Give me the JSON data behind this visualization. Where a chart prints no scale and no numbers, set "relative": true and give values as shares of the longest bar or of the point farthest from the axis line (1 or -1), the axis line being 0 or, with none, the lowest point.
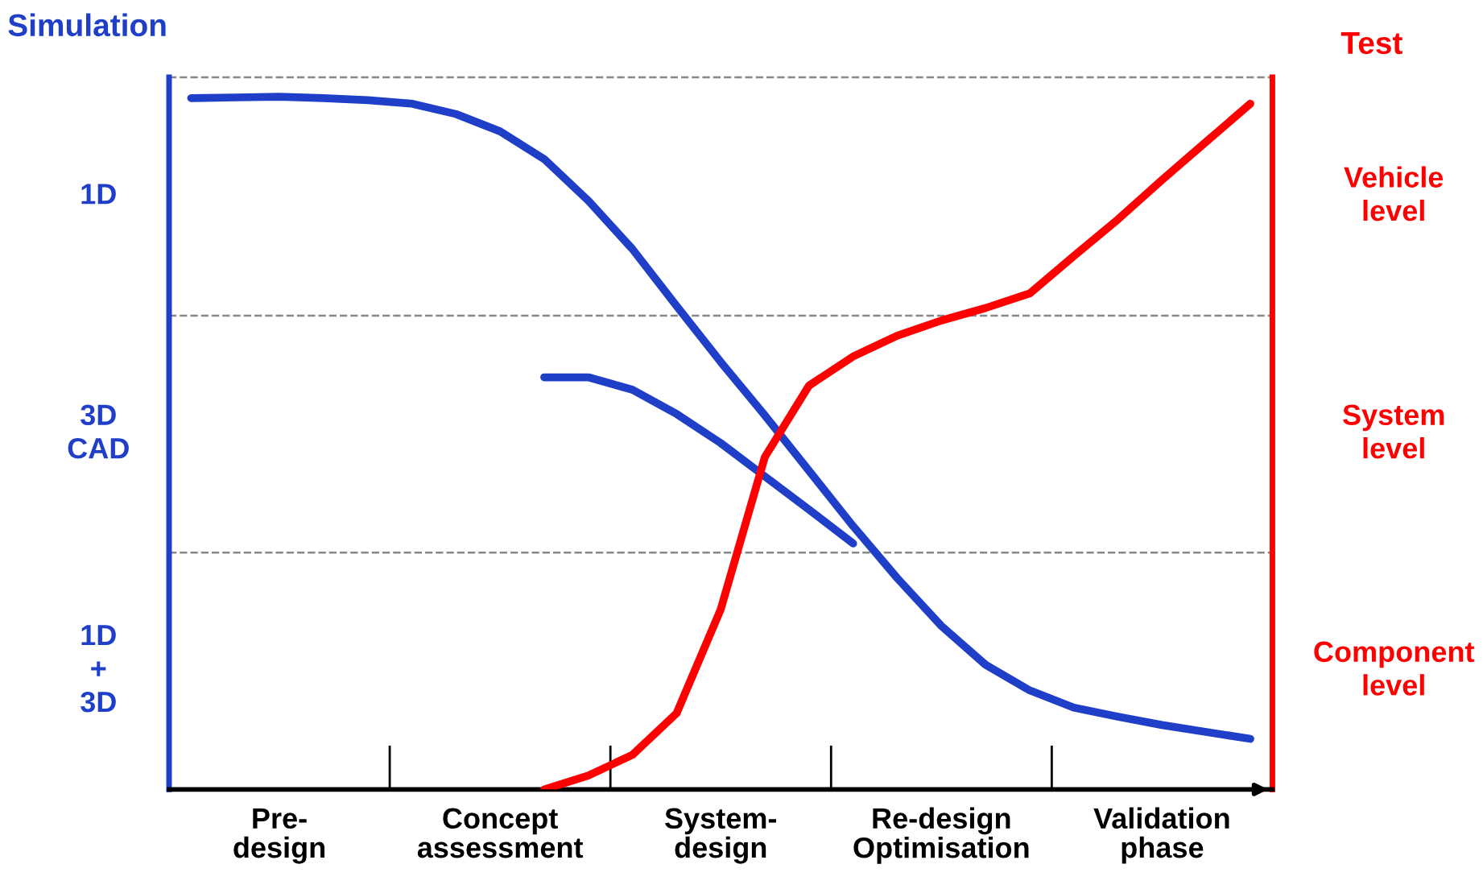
{
  "chart_data": {
    "type": "line",
    "relative": true,
    "ylabel": "Simulation",
    "y2label": "Test",
    "categories": [
      null,
      null,
      "Pre-\ndesign",
      null,
      null,
      null,
      null,
      "Concept\nassessment",
      null,
      null,
      null,
      null,
      "System-\ndesign",
      null,
      null,
      null,
      null,
      "Re-design\nOptimisation",
      null,
      null,
      null,
      null,
      "Validation\nphase",
      null,
      null
    ],
    "series": [
      {
        "color": "#1f3fc8",
        "values": [
          0.998,
          0.999,
          1.0,
          0.998,
          0.995,
          0.99,
          0.975,
          0.95,
          0.91,
          0.85,
          0.78,
          0.698,
          0.617,
          0.54,
          0.46,
          0.38,
          0.305,
          0.236,
          0.18,
          0.143,
          0.118,
          0.105,
          0.093,
          0.083,
          0.073
        ]
      },
      {
        "color": "#1f3fc8",
        "values": [
          null,
          null,
          null,
          null,
          null,
          null,
          null,
          null,
          0.595,
          0.595,
          0.577,
          0.542,
          0.5,
          0.452,
          0.404,
          0.355,
          null,
          null,
          null,
          null,
          null,
          null,
          null,
          null,
          null
        ]
      },
      {
        "color": "#ff0000",
        "values": [
          null,
          null,
          null,
          null,
          null,
          null,
          null,
          null,
          0,
          0.02,
          0.05,
          0.11,
          0.26,
          0.48,
          0.583,
          0.625,
          0.655,
          0.677,
          0.695,
          0.716,
          0.77,
          0.823,
          0.88,
          0.935,
          0.99
        ]
      }
    ],
    "ref_lines": [
      {
        "axis": "y",
        "value": 1.028,
        "color": "#888888",
        "line_style": "dashed"
      },
      {
        "axis": "y",
        "value": 0.684,
        "color": "#888888",
        "line_style": "dashed"
      },
      {
        "axis": "y",
        "value": 0.342,
        "color": "#888888",
        "line_style": "dashed"
      }
    ],
    "annotations": [
      "1D",
      "3D\nCAD",
      "1D\n+\n3D",
      "Vehicle\nlevel",
      "System\nlevel",
      "Component\nlevel"
    ]
  }
}
